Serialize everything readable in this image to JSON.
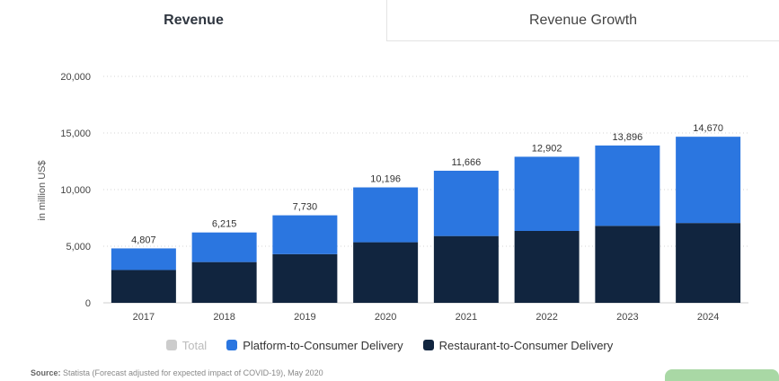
{
  "tabs": {
    "active_label": "Revenue",
    "inactive_label": "Revenue Growth"
  },
  "source": {
    "label": "Source:",
    "text": "Statista (Forecast adjusted for expected impact of COVID-19), May 2020"
  },
  "legend": {
    "total": "Total",
    "platform": "Platform-to-Consumer Delivery",
    "restaurant": "Restaurant-to-Consumer Delivery"
  },
  "colors": {
    "platform": "#2b76e0",
    "restaurant": "#11253f",
    "total_disabled": "#cccccc"
  },
  "chart_data": {
    "type": "bar",
    "stacked": true,
    "categories": [
      "2017",
      "2018",
      "2019",
      "2020",
      "2021",
      "2022",
      "2023",
      "2024"
    ],
    "series": [
      {
        "name": "Restaurant-to-Consumer Delivery",
        "values": [
          2900,
          3600,
          4300,
          5350,
          5900,
          6350,
          6800,
          7050
        ]
      },
      {
        "name": "Platform-to-Consumer Delivery",
        "values": [
          1907,
          2615,
          3430,
          4846,
          5766,
          6552,
          7096,
          7620
        ]
      }
    ],
    "totals": [
      "4,807",
      "6,215",
      "7,730",
      "10,196",
      "11,666",
      "12,902",
      "13,896",
      "14,670"
    ],
    "ylabel": "in million US$",
    "ylim": [
      0,
      20000
    ],
    "yticks": [
      "0",
      "5,000",
      "10,000",
      "15,000",
      "20,000"
    ],
    "ytick_values": [
      0,
      5000,
      10000,
      15000,
      20000
    ],
    "grid": true
  }
}
